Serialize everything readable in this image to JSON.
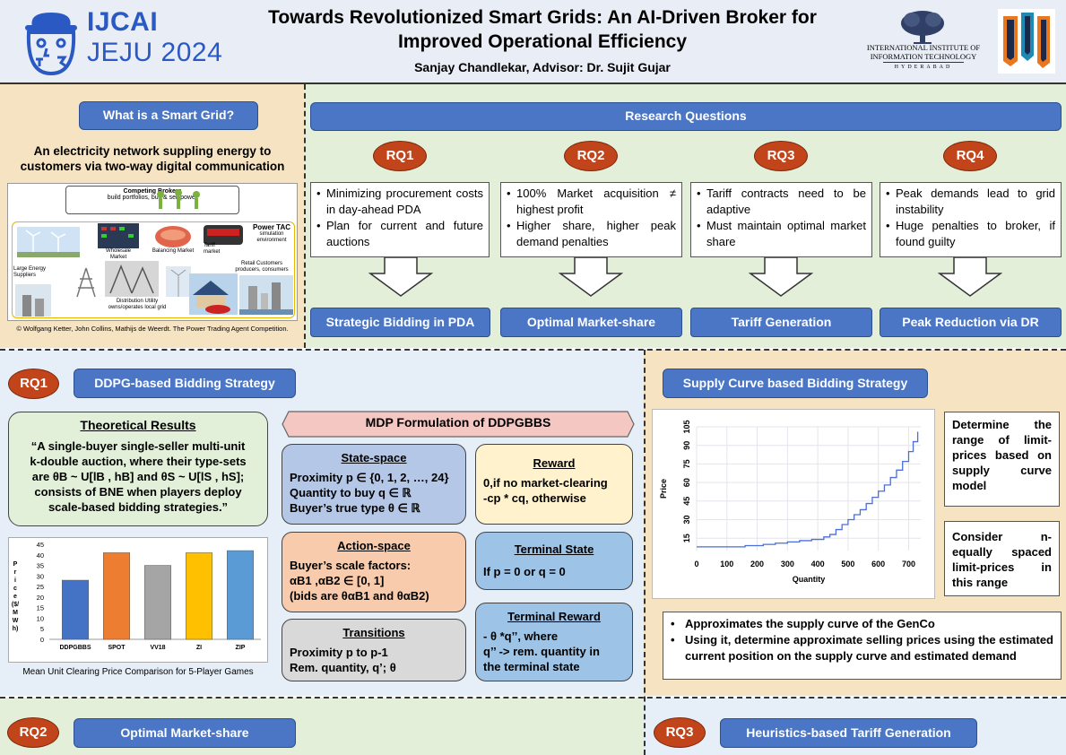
{
  "header": {
    "conf_name": "IJCAI",
    "conf_place": "JEJU 2024",
    "title_line1": "Towards Revolutionized Smart Grids: An AI-Driven Broker for",
    "title_line2": "Improved Operational Efficiency",
    "authors": "Sanjay Chandlekar,  Advisor: Dr. Sujit Gujar",
    "institute_line1": "INTERNATIONAL INSTITUTE OF",
    "institute_line2": "INFORMATION TECHNOLOGY",
    "institute_city": "HYDERABAD"
  },
  "smart_grid": {
    "heading": "What is a Smart Grid?",
    "description": "An electricity network suppling energy to customers via two-way digital communication",
    "figure_labels": {
      "competing_brokers": "Competing Brokers",
      "competing_brokers_sub": "build portfolios, buy & sell power",
      "power_tac": "Power TAC",
      "power_tac_sub": "simulation environment",
      "wholesale": "Wholesale Market",
      "balancing": "Balancing Market",
      "tariff": "Tariff market",
      "large_energy": "Large Energy Suppliers",
      "distribution": "Distribution Utility owns/operates local grid",
      "retail": "Retail Customers producers, consumers"
    },
    "credit": "© Wolfgang Ketter, John Collins, Mathijs de Weerdt. The Power Trading Agent Competition."
  },
  "research_questions": {
    "heading": "Research Questions",
    "items": [
      {
        "label": "RQ1",
        "bullets": [
          "Minimizing procurement costs in day-ahead PDA",
          "Plan for current and future auctions"
        ],
        "outcome": "Strategic Bidding in PDA"
      },
      {
        "label": "RQ2",
        "bullets": [
          "100% Market acquisition ≠ highest profit",
          "Higher share, higher peak demand penalties"
        ],
        "outcome": "Optimal Market-share"
      },
      {
        "label": "RQ3",
        "bullets": [
          "Tariff contracts need to be adaptive",
          "Must maintain optimal market share"
        ],
        "outcome": "Tariff Generation"
      },
      {
        "label": "RQ4",
        "bullets": [
          "Peak demands lead to grid instability",
          "Huge penalties to broker, if found guilty"
        ],
        "outcome": "Peak Reduction via DR"
      }
    ]
  },
  "rq1_section": {
    "badge": "RQ1",
    "heading": "DDPG-based Bidding Strategy",
    "theory_title": "Theoretical Results",
    "theory_text_a": "“A single-buyer single-seller multi-unit",
    "theory_text_b": "k-double auction, where their type-sets",
    "theory_text_c": "are θB ~ U[lB , hB] and θS ~ U[lS , hS];",
    "theory_text_d": "consists of BNE when players deploy",
    "theory_text_e": "scale-based bidding strategies.”",
    "mdp_heading": "MDP Formulation of DDPGBBS",
    "state_title": "State-space",
    "state_lines": [
      "Proximity p ∈ {0, 1, 2, …, 24}",
      "Quantity to buy q ∈ ℝ",
      "Buyer’s true type θ ∈ ℝ"
    ],
    "reward_title": "Reward",
    "reward_lines": [
      "0,if no market-clearing",
      "-cp * cq, otherwise"
    ],
    "action_title": "Action-space",
    "action_lines": [
      "Buyer’s scale factors:",
      "αB1 ,αB2 ∈ [0, 1]",
      "(bids are θαB1 and θαB2)"
    ],
    "terminal_state_title": "Terminal State",
    "terminal_state_line": "If p = 0 or q = 0",
    "transitions_title": "Transitions",
    "transitions_lines": [
      "Proximity p to p-1",
      "Rem. quantity, q’; θ"
    ],
    "terminal_reward_title": "Terminal Reward",
    "terminal_reward_lines": [
      "- θ *q’’, where",
      "q’’ -> rem. quantity in",
      "the terminal state"
    ],
    "chart_caption": "Mean Unit Clearing Price Comparison for 5-Player Games"
  },
  "chart_data": [
    {
      "type": "bar",
      "categories": [
        "DDPGBBS",
        "SPOT",
        "VV18",
        "ZI",
        "ZIP"
      ],
      "values": [
        28,
        41,
        35,
        41,
        42
      ],
      "colors": [
        "#4472c4",
        "#ed7d31",
        "#a5a5a5",
        "#ffc000",
        "#5b9bd5"
      ],
      "title": "",
      "xlabel": "",
      "ylabel": "Price ($/MWh)",
      "ylim": [
        0,
        45
      ],
      "yticks": [
        0,
        5,
        10,
        15,
        20,
        25,
        30,
        35,
        40,
        45
      ],
      "caption": "Mean Unit Clearing Price Comparison for 5-Player Games"
    },
    {
      "type": "line",
      "title": "",
      "xlabel": "Quantity",
      "ylabel": "Price",
      "xticks": [
        0,
        100,
        200,
        300,
        400,
        500,
        600,
        700
      ],
      "yticks": [
        15,
        30,
        45,
        60,
        75,
        90,
        105
      ],
      "xlim": [
        0,
        740
      ],
      "ylim": [
        5,
        105
      ],
      "x": [
        0,
        60,
        160,
        220,
        260,
        300,
        340,
        380,
        420,
        440,
        460,
        480,
        500,
        520,
        540,
        560,
        580,
        600,
        620,
        640,
        660,
        680,
        700,
        715,
        730
      ],
      "y": [
        8,
        8,
        9,
        10,
        11,
        12,
        13,
        14,
        16,
        18,
        22,
        26,
        30,
        34,
        38,
        43,
        48,
        53,
        58,
        64,
        70,
        77,
        85,
        93,
        101
      ]
    }
  ],
  "supply_section": {
    "heading": "Supply Curve based Bidding Strategy",
    "box1": "Determine the range of limit-prices based on supply curve model",
    "box2": "Consider n-equally spaced limit-prices in this range",
    "bullets": [
      "Approximates the supply curve of the GenCo",
      "Using it, determine approximate selling prices using the estimated current position on the supply curve and estimated demand"
    ]
  },
  "rq2_section": {
    "badge": "RQ2",
    "heading": "Optimal Market-share"
  },
  "rq3_section": {
    "badge": "RQ3",
    "heading": "Heuristics-based Tariff Generation"
  },
  "colors": {
    "button_blue": "#4a76c5",
    "rq_orange": "#c2441a",
    "theory_green": "#e2efd9",
    "state_blue": "#b4c7e7",
    "reward_yellow": "#fff2cc",
    "action_orange": "#f8cbad",
    "transitions_gray": "#d9d9d9",
    "terminal_blue": "#9dc3e6",
    "mdp_pink": "#f4c7c3"
  }
}
